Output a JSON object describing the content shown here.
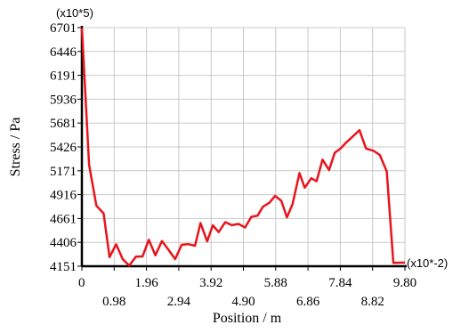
{
  "chart_data": {
    "type": "line",
    "xlabel": "Position / m",
    "ylabel": "Stress / Pa",
    "x_multiplier": "(x10*-2)",
    "y_multiplier": "(x10*5)",
    "xlim": [
      0,
      9.8
    ],
    "ylim": [
      4151,
      6701
    ],
    "x_ticks": [
      "0",
      "0.98",
      "1.96",
      "2.94",
      "3.92",
      "4.90",
      "5.88",
      "6.86",
      "7.84",
      "8.82",
      "9.80"
    ],
    "y_ticks": [
      "4151",
      "4406",
      "4661",
      "4916",
      "5171",
      "5426",
      "5681",
      "5936",
      "6191",
      "6446",
      "6701"
    ],
    "grid": true,
    "colors": {
      "line": "#e8141c",
      "axis": "#000000",
      "grid": "#c8c8c8"
    },
    "series": [
      {
        "x": [
          0.0,
          0.22,
          0.44,
          0.66,
          0.84,
          1.04,
          1.24,
          1.44,
          1.64,
          1.84,
          2.03,
          2.23,
          2.43,
          2.63,
          2.83,
          3.03,
          3.23,
          3.43,
          3.6,
          3.8,
          3.97,
          4.15,
          4.35,
          4.55,
          4.75,
          4.95,
          5.14,
          5.33,
          5.49,
          5.69,
          5.86,
          6.05,
          6.22,
          6.39,
          6.6,
          6.76,
          6.96,
          7.12,
          7.3,
          7.5,
          7.67,
          7.84,
          8.04,
          8.2,
          8.42,
          8.62,
          8.86,
          9.04,
          9.25,
          9.45,
          9.8
        ],
        "y": [
          6701,
          5235,
          4798,
          4716,
          4248,
          4385,
          4226,
          4158,
          4253,
          4256,
          4434,
          4268,
          4420,
          4326,
          4227,
          4380,
          4387,
          4370,
          4612,
          4416,
          4589,
          4515,
          4622,
          4590,
          4603,
          4565,
          4679,
          4691,
          4787,
          4829,
          4903,
          4850,
          4673,
          4813,
          5146,
          4990,
          5091,
          5059,
          5290,
          5180,
          5363,
          5407,
          5480,
          5532,
          5605,
          5409,
          5382,
          5339,
          5163,
          4186,
          4190
        ]
      }
    ]
  }
}
